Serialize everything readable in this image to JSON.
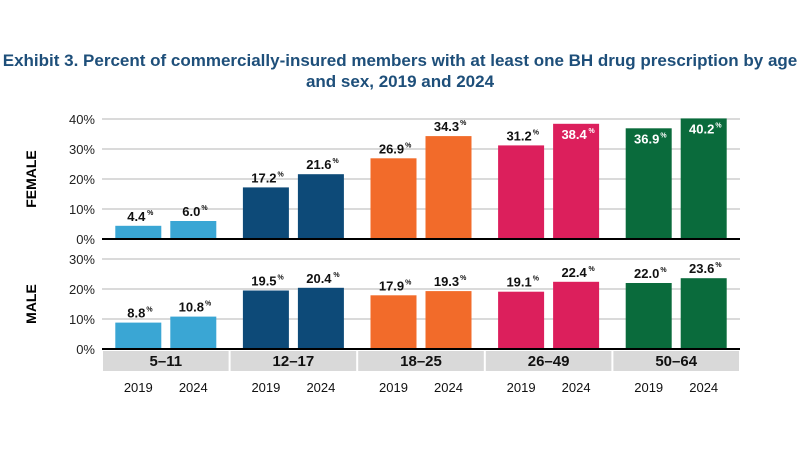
{
  "chart_data": {
    "type": "bar",
    "title": "Exhibit 3. Percent of commercially-insured members with at least one BH drug prescription by age and sex, 2019 and 2024",
    "categories": [
      "5–11",
      "12–17",
      "18–25",
      "26–49",
      "50–64"
    ],
    "years": [
      "2019",
      "2024"
    ],
    "colors": [
      "#3aa6d4",
      "#0d4a78",
      "#f26b2a",
      "#dc1f5c",
      "#0a6b3c"
    ],
    "panels": [
      {
        "label": "FEMALE",
        "ylim": [
          0,
          40
        ],
        "ticks": [
          "0%",
          "10%",
          "20%",
          "30%",
          "40%"
        ],
        "tick_values": [
          0,
          10,
          20,
          30,
          40
        ],
        "values": [
          [
            4.4,
            6.0
          ],
          [
            17.2,
            21.6
          ],
          [
            26.9,
            34.3
          ],
          [
            31.2,
            38.4
          ],
          [
            36.9,
            40.2
          ]
        ],
        "labels": [
          [
            "4.4",
            "6.0"
          ],
          [
            "17.2",
            "21.6"
          ],
          [
            "26.9",
            "34.3"
          ],
          [
            "31.2",
            "38.4"
          ],
          [
            "36.9",
            "40.2"
          ]
        ]
      },
      {
        "label": "MALE",
        "ylim": [
          0,
          30
        ],
        "ticks": [
          "0%",
          "10%",
          "20%",
          "30%"
        ],
        "tick_values": [
          0,
          10,
          20,
          30
        ],
        "values": [
          [
            8.8,
            10.8
          ],
          [
            19.5,
            20.4
          ],
          [
            17.9,
            19.3
          ],
          [
            19.1,
            22.4
          ],
          [
            22.0,
            23.6
          ]
        ],
        "labels": [
          [
            "8.8",
            "10.8"
          ],
          [
            "19.5",
            "20.4"
          ],
          [
            "17.9",
            "19.3"
          ],
          [
            "19.1",
            "22.4"
          ],
          [
            "22.0",
            "23.6"
          ]
        ]
      }
    ],
    "percent_sign": "%"
  }
}
